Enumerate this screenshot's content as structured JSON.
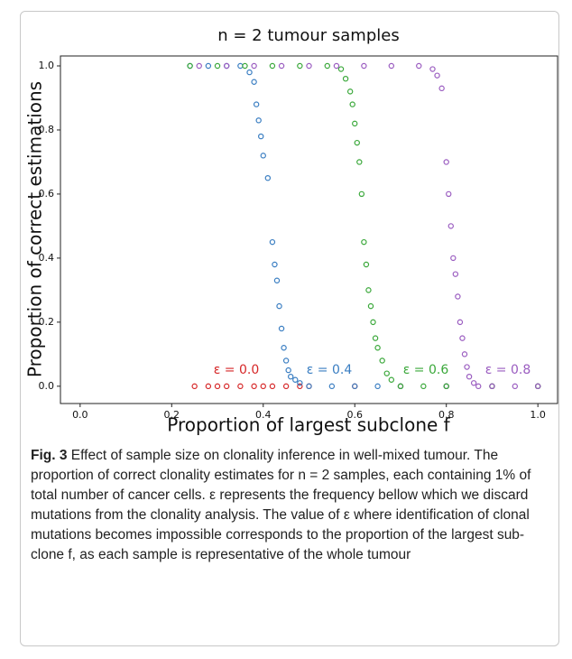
{
  "chart_data": {
    "type": "scatter",
    "title": "n = 2 tumour samples",
    "x_label": "Proportion of largest subclone f",
    "y_label": "Proportion of correct estimations",
    "xlim": [
      -0.043,
      1.043
    ],
    "ylim": [
      -0.054,
      1.031
    ],
    "xticks": [
      {
        "value": 0,
        "label": "0.0"
      },
      {
        "value": 0.2,
        "label": "0.2"
      },
      {
        "value": 0.4,
        "label": "0.4"
      },
      {
        "value": 0.6,
        "label": "0.6"
      },
      {
        "value": 0.8,
        "label": "0.8"
      },
      {
        "value": 1,
        "label": "1.0"
      }
    ],
    "yticks": [
      {
        "value": 0,
        "label": "0.0"
      },
      {
        "value": 0.2,
        "label": "0.2"
      },
      {
        "value": 0.4,
        "label": "0.4"
      },
      {
        "value": 0.6,
        "label": "0.6"
      },
      {
        "value": 0.8,
        "label": "0.8"
      },
      {
        "value": 1,
        "label": "1.0"
      }
    ],
    "series": [
      {
        "name": "ε = 0.0",
        "color": "#d62728",
        "x": [
          0.25,
          0.28,
          0.3,
          0.32,
          0.35,
          0.38,
          0.4,
          0.42,
          0.45,
          0.48,
          0.5,
          0.6,
          0.7,
          0.8,
          0.9,
          1.0
        ],
        "values": [
          0,
          0,
          0,
          0,
          0,
          0,
          0,
          0,
          0,
          0,
          0,
          0,
          0,
          0,
          0,
          0
        ]
      },
      {
        "name": "ε = 0.4",
        "color": "#3a7ec2",
        "x": [
          0.24,
          0.28,
          0.32,
          0.35,
          0.37,
          0.38,
          0.385,
          0.39,
          0.395,
          0.4,
          0.41,
          0.42,
          0.425,
          0.43,
          0.435,
          0.44,
          0.445,
          0.45,
          0.455,
          0.46,
          0.47,
          0.48,
          0.5,
          0.55,
          0.6,
          0.65,
          0.7,
          0.8,
          0.9,
          1.0
        ],
        "values": [
          1,
          1,
          1,
          1,
          0.98,
          0.95,
          0.88,
          0.83,
          0.78,
          0.72,
          0.65,
          0.45,
          0.38,
          0.33,
          0.25,
          0.18,
          0.12,
          0.08,
          0.05,
          0.03,
          0.02,
          0.01,
          0,
          0,
          0,
          0,
          0,
          0,
          0,
          0
        ]
      },
      {
        "name": "ε = 0.6",
        "color": "#3aa83a",
        "x": [
          0.24,
          0.3,
          0.36,
          0.42,
          0.48,
          0.54,
          0.57,
          0.58,
          0.59,
          0.595,
          0.6,
          0.605,
          0.61,
          0.615,
          0.62,
          0.625,
          0.63,
          0.635,
          0.64,
          0.645,
          0.65,
          0.66,
          0.67,
          0.68,
          0.7,
          0.75,
          0.8,
          0.9,
          1.0
        ],
        "values": [
          1,
          1,
          1,
          1,
          1,
          1,
          0.99,
          0.96,
          0.92,
          0.88,
          0.82,
          0.76,
          0.7,
          0.6,
          0.45,
          0.38,
          0.3,
          0.25,
          0.2,
          0.15,
          0.12,
          0.08,
          0.04,
          0.02,
          0,
          0,
          0,
          0,
          0
        ]
      },
      {
        "name": "ε = 0.8",
        "color": "#9a5cc0",
        "x": [
          0.26,
          0.32,
          0.38,
          0.44,
          0.5,
          0.56,
          0.62,
          0.68,
          0.74,
          0.77,
          0.78,
          0.79,
          0.8,
          0.805,
          0.81,
          0.815,
          0.82,
          0.825,
          0.83,
          0.835,
          0.84,
          0.845,
          0.85,
          0.86,
          0.87,
          0.9,
          0.95,
          1.0
        ],
        "values": [
          1,
          1,
          1,
          1,
          1,
          1,
          1,
          1,
          1,
          0.99,
          0.97,
          0.93,
          0.7,
          0.6,
          0.5,
          0.4,
          0.35,
          0.28,
          0.2,
          0.15,
          0.1,
          0.06,
          0.03,
          0.01,
          0,
          0,
          0,
          0
        ]
      }
    ]
  },
  "caption": {
    "label": "Fig. 3",
    "text": "Effect of sample size on clonality inference in well-mixed tumour. The proportion of correct clonality estimates for n = 2 samples, each containing 1% of total number of cancer cells. ε represents the frequency bellow which we discard mutations from the clonality analysis. The value of ε where identification of clonal mutations becomes impossible corresponds to the proportion of the largest sub-clone f, as each sample is representative of the whole tumour"
  }
}
